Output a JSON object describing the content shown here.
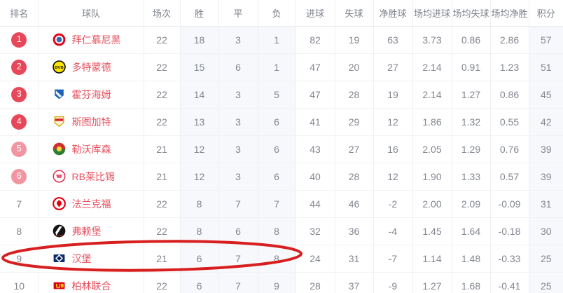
{
  "table": {
    "columns": [
      {
        "key": "rank",
        "label": "排名"
      },
      {
        "key": "team",
        "label": "球队"
      },
      {
        "key": "played",
        "label": "场次"
      },
      {
        "key": "win",
        "label": "胜"
      },
      {
        "key": "draw",
        "label": "平"
      },
      {
        "key": "loss",
        "label": "负"
      },
      {
        "key": "goals_for",
        "label": "进球"
      },
      {
        "key": "goals_against",
        "label": "失球"
      },
      {
        "key": "goal_diff",
        "label": "净胜球"
      },
      {
        "key": "avg_goals_for",
        "label": "场均进球"
      },
      {
        "key": "avg_goals_against",
        "label": "场均失球"
      },
      {
        "key": "avg_goal_diff",
        "label": "场均净胜"
      },
      {
        "key": "points",
        "label": "积分"
      }
    ],
    "rows": [
      {
        "rank": "1",
        "badge": "solid",
        "logo": "bayern",
        "team": "拜仁慕尼黑",
        "played": "22",
        "win": "18",
        "draw": "3",
        "loss": "1",
        "goals_for": "82",
        "goals_against": "19",
        "goal_diff": "63",
        "avg_goals_for": "3.73",
        "avg_goals_against": "0.86",
        "avg_goal_diff": "2.86",
        "points": "57"
      },
      {
        "rank": "2",
        "badge": "solid",
        "logo": "dortmund",
        "team": "多特蒙德",
        "played": "22",
        "win": "15",
        "draw": "6",
        "loss": "1",
        "goals_for": "47",
        "goals_against": "20",
        "goal_diff": "27",
        "avg_goals_for": "2.14",
        "avg_goals_against": "0.91",
        "avg_goal_diff": "1.23",
        "points": "51"
      },
      {
        "rank": "3",
        "badge": "solid",
        "logo": "hoffenheim",
        "team": "霍芬海姆",
        "played": "22",
        "win": "14",
        "draw": "3",
        "loss": "5",
        "goals_for": "47",
        "goals_against": "28",
        "goal_diff": "19",
        "avg_goals_for": "2.14",
        "avg_goals_against": "1.27",
        "avg_goal_diff": "0.86",
        "points": "45"
      },
      {
        "rank": "4",
        "badge": "solid",
        "logo": "stuttgart",
        "team": "斯图加特",
        "played": "22",
        "win": "13",
        "draw": "3",
        "loss": "6",
        "goals_for": "41",
        "goals_against": "29",
        "goal_diff": "12",
        "avg_goals_for": "1.86",
        "avg_goals_against": "1.32",
        "avg_goal_diff": "0.55",
        "points": "42"
      },
      {
        "rank": "5",
        "badge": "light",
        "logo": "leverkusen",
        "team": "勒沃库森",
        "played": "21",
        "win": "12",
        "draw": "3",
        "loss": "6",
        "goals_for": "43",
        "goals_against": "27",
        "goal_diff": "16",
        "avg_goals_for": "2.05",
        "avg_goals_against": "1.29",
        "avg_goal_diff": "0.76",
        "points": "39"
      },
      {
        "rank": "6",
        "badge": "light",
        "logo": "leipzig",
        "team": "RB莱比锡",
        "played": "21",
        "win": "12",
        "draw": "3",
        "loss": "6",
        "goals_for": "40",
        "goals_against": "28",
        "goal_diff": "12",
        "avg_goals_for": "1.90",
        "avg_goals_against": "1.33",
        "avg_goal_diff": "0.57",
        "points": "39"
      },
      {
        "rank": "7",
        "badge": "none",
        "logo": "frankfurt",
        "team": "法兰克福",
        "played": "22",
        "win": "8",
        "draw": "7",
        "loss": "7",
        "goals_for": "44",
        "goals_against": "46",
        "goal_diff": "-2",
        "avg_goals_for": "2.00",
        "avg_goals_against": "2.09",
        "avg_goal_diff": "-0.09",
        "points": "31"
      },
      {
        "rank": "8",
        "badge": "none",
        "logo": "freiburg",
        "team": "弗赖堡",
        "played": "22",
        "win": "8",
        "draw": "6",
        "loss": "8",
        "goals_for": "32",
        "goals_against": "36",
        "goal_diff": "-4",
        "avg_goals_for": "1.45",
        "avg_goals_against": "1.64",
        "avg_goal_diff": "-0.18",
        "points": "30"
      },
      {
        "rank": "9",
        "badge": "none",
        "logo": "hamburg",
        "team": "汉堡",
        "played": "21",
        "win": "6",
        "draw": "7",
        "loss": "8",
        "goals_for": "24",
        "goals_against": "31",
        "goal_diff": "-7",
        "avg_goals_for": "1.14",
        "avg_goals_against": "1.48",
        "avg_goal_diff": "-0.33",
        "points": "25"
      },
      {
        "rank": "10",
        "badge": "none",
        "logo": "union_berlin",
        "team": "柏林联合",
        "played": "22",
        "win": "6",
        "draw": "7",
        "loss": "9",
        "goals_for": "28",
        "goals_against": "37",
        "goal_diff": "-9",
        "avg_goals_for": "1.27",
        "avg_goals_against": "1.68",
        "avg_goal_diff": "-0.41",
        "points": "25"
      }
    ],
    "shaded_column_keys": [
      "win",
      "draw",
      "loss",
      "points"
    ]
  },
  "annotation": {
    "shape": "hand-drawn-ellipse",
    "highlighted_team": "汉堡",
    "highlighted_rank": "9",
    "stroke_color": "#d81f1f"
  },
  "colors": {
    "team_name": "#e8505f",
    "badge_top": "#e8475a",
    "badge_light": "#f295a1",
    "column_shade": "#f7f8fb",
    "annotation_red": "#d81f1f"
  }
}
